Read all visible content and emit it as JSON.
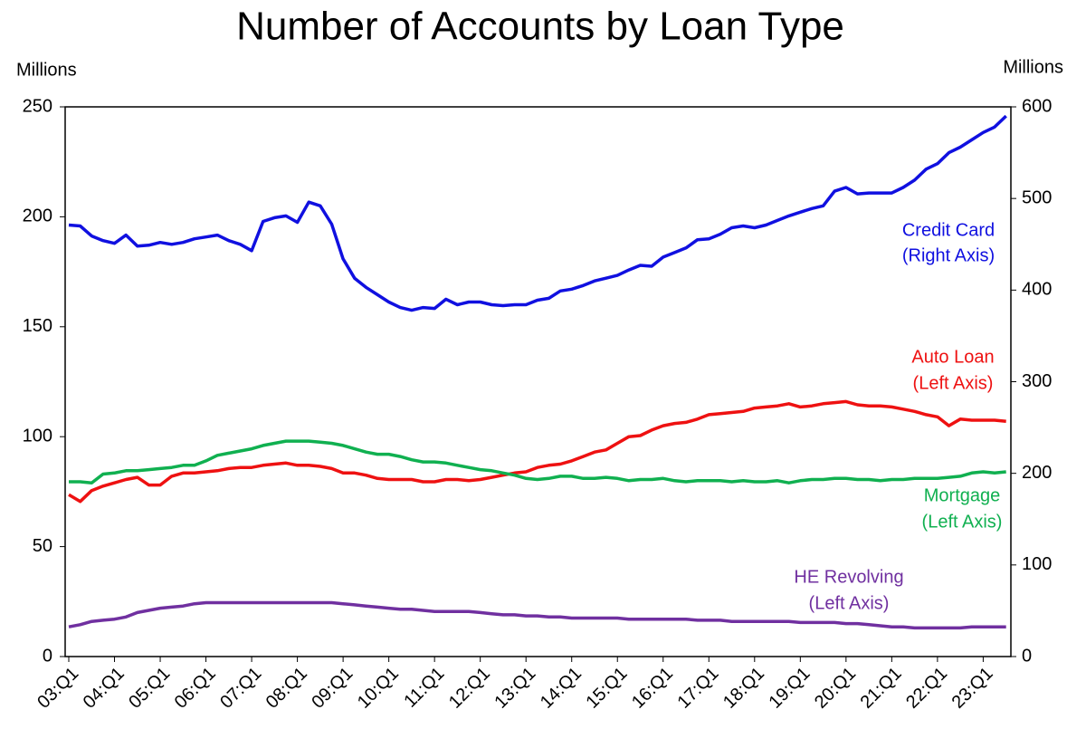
{
  "chart_data": {
    "type": "line",
    "title": "Number of Accounts by Loan Type",
    "ylabel": "Millions",
    "y2label": "Millions",
    "ylim": [
      0,
      250
    ],
    "yticks": [
      0,
      50,
      100,
      150,
      200,
      250
    ],
    "y2lim": [
      0,
      600
    ],
    "y2ticks": [
      0,
      100,
      200,
      300,
      400,
      500,
      600
    ],
    "categories": [
      "03:Q1",
      null,
      null,
      null,
      "04:Q1",
      null,
      null,
      null,
      "05:Q1",
      null,
      null,
      null,
      "06:Q1",
      null,
      null,
      null,
      "07:Q1",
      null,
      null,
      null,
      "08:Q1",
      null,
      null,
      null,
      "09:Q1",
      null,
      null,
      null,
      "10:Q1",
      null,
      null,
      null,
      "11:Q1",
      null,
      null,
      null,
      "12:Q1",
      null,
      null,
      null,
      "13:Q1",
      null,
      null,
      null,
      "14:Q1",
      null,
      null,
      null,
      "15:Q1",
      null,
      null,
      null,
      "16:Q1",
      null,
      null,
      null,
      "17:Q1",
      null,
      null,
      null,
      "18:Q1",
      null,
      null,
      null,
      "19:Q1",
      null,
      null,
      null,
      "20:Q1",
      null,
      null,
      null,
      "21:Q1",
      null,
      null,
      null,
      "22:Q1",
      null,
      null,
      null,
      "23:Q1",
      null,
      null
    ],
    "series": [
      {
        "name": "Credit Card",
        "axis_label": "(Right Axis)",
        "axis": "y2",
        "color": "#1010e0",
        "values": [
          471,
          470,
          459,
          454,
          451,
          460,
          448,
          449,
          452,
          450,
          452,
          456,
          458,
          460,
          454,
          450,
          443,
          475,
          479,
          481,
          474,
          496,
          492,
          472,
          434,
          413,
          403,
          395,
          387,
          381,
          378,
          381,
          380,
          390,
          384,
          387,
          387,
          384,
          383,
          384,
          384,
          389,
          391,
          399,
          401,
          405,
          410,
          413,
          416,
          422,
          427,
          426,
          436,
          441,
          446,
          455,
          456,
          461,
          468,
          470,
          468,
          471,
          476,
          481,
          485,
          489,
          492,
          508,
          512,
          505,
          506,
          506,
          506,
          512,
          520,
          532,
          538,
          550,
          556,
          564,
          572,
          578,
          590
        ]
      },
      {
        "name": "Auto Loan",
        "axis_label": "(Left Axis)",
        "color": "#ee1111",
        "values": [
          73.6,
          70.5,
          75.5,
          77.5,
          79,
          80.5,
          81.5,
          78,
          78,
          82,
          83.5,
          83.5,
          84,
          84.5,
          85.5,
          86,
          86,
          87,
          87.5,
          88,
          87,
          87,
          86.5,
          85.5,
          83.5,
          83.5,
          82.5,
          81,
          80.5,
          80.5,
          80.5,
          79.5,
          79.5,
          80.5,
          80.5,
          80,
          80.5,
          81.5,
          82.5,
          83.5,
          84,
          86,
          87,
          87.5,
          89,
          91,
          93,
          94,
          97,
          100,
          100.5,
          103,
          105,
          106,
          106.5,
          108,
          110,
          110.5,
          111,
          111.5,
          113,
          113.5,
          114,
          115,
          113.5,
          114,
          115,
          115.5,
          116,
          114.5,
          114,
          114,
          113.5,
          112.5,
          111.5,
          110,
          109,
          105,
          108,
          107.5,
          107.5,
          107.5,
          107
        ]
      },
      {
        "name": "Mortgage",
        "axis_label": "(Left Axis)",
        "color": "#10b050",
        "values": [
          79.5,
          79.5,
          79,
          83,
          83.5,
          84.5,
          84.5,
          85,
          85.5,
          86,
          87,
          87,
          89,
          91.5,
          92.5,
          93.5,
          94.5,
          96,
          97,
          98,
          98,
          98,
          97.5,
          97,
          96,
          94.5,
          93,
          92,
          92,
          91,
          89.5,
          88.5,
          88.5,
          88,
          87,
          86,
          85,
          84.5,
          83.5,
          82.5,
          81,
          80.5,
          81,
          82,
          82,
          81,
          81,
          81.5,
          81,
          80,
          80.5,
          80.5,
          81,
          80,
          79.5,
          80,
          80,
          80,
          79.5,
          80,
          79.5,
          79.5,
          80,
          79,
          80,
          80.5,
          80.5,
          81,
          81,
          80.5,
          80.5,
          80,
          80.5,
          80.5,
          81,
          81,
          81,
          81.5,
          82,
          83.5,
          84,
          83.5,
          84
        ]
      },
      {
        "name": "HE Revolving",
        "axis_label": "(Left Axis)",
        "color": "#7030a0",
        "values": [
          13.5,
          14.5,
          16,
          16.5,
          17,
          18,
          20,
          21,
          22,
          22.5,
          23,
          24,
          24.5,
          24.5,
          24.5,
          24.5,
          24.5,
          24.5,
          24.5,
          24.5,
          24.5,
          24.5,
          24.5,
          24.5,
          24,
          23.5,
          23,
          22.5,
          22,
          21.5,
          21.5,
          21,
          20.5,
          20.5,
          20.5,
          20.5,
          20,
          19.5,
          19,
          19,
          18.5,
          18.5,
          18,
          18,
          17.5,
          17.5,
          17.5,
          17.5,
          17.5,
          17,
          17,
          17,
          17,
          17,
          17,
          16.5,
          16.5,
          16.5,
          16,
          16,
          16,
          16,
          16,
          16,
          15.5,
          15.5,
          15.5,
          15.5,
          15,
          15,
          14.5,
          14,
          13.5,
          13.5,
          13,
          13,
          13,
          13,
          13,
          13.5,
          13.5,
          13.5,
          13.5
        ]
      }
    ]
  }
}
